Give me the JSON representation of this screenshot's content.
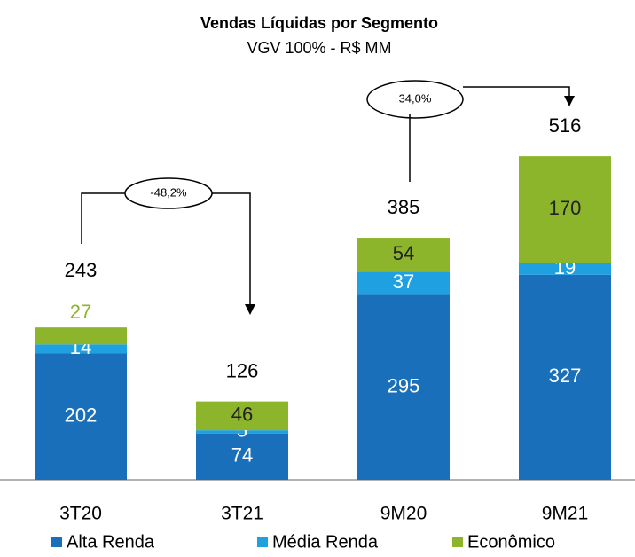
{
  "chart_data": {
    "type": "stacked_bar",
    "title": "Vendas Líquidas por Segmento",
    "subtitle": "VGV 100% - R$ MM",
    "categories": [
      "3T20",
      "3T21",
      "9M20",
      "9M21"
    ],
    "series": [
      {
        "name": "Alta Renda",
        "color": "#1a6fba",
        "values": [
          202,
          74,
          295,
          327
        ]
      },
      {
        "name": "Média Renda",
        "color": "#1fa0e0",
        "values": [
          14,
          5,
          37,
          19
        ]
      },
      {
        "name": "Econômico",
        "color": "#8db52b",
        "values": [
          27,
          46,
          54,
          170
        ]
      }
    ],
    "totals": [
      243,
      126,
      385,
      516
    ],
    "annotations": [
      "-48,2%",
      "34,0%"
    ],
    "ylim": [
      0,
      560
    ]
  }
}
